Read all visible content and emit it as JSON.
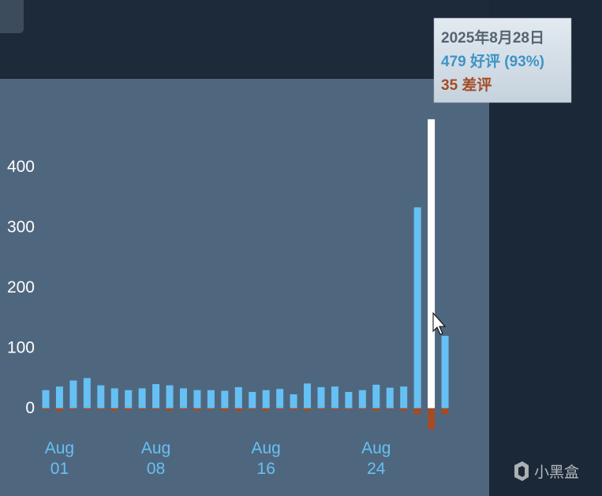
{
  "chart_data": {
    "type": "bar",
    "categories": [
      null,
      "Aug 01",
      null,
      null,
      null,
      null,
      null,
      null,
      "Aug 08",
      null,
      null,
      null,
      null,
      null,
      null,
      null,
      "Aug 16",
      null,
      null,
      null,
      null,
      null,
      null,
      null,
      "Aug 24",
      null,
      null,
      null,
      null,
      null
    ],
    "series": [
      {
        "color": "#66c0f4",
        "values": [
          30,
          36,
          46,
          50,
          38,
          33,
          30,
          33,
          40,
          38,
          33,
          30,
          30,
          29,
          35,
          27,
          30,
          32,
          23,
          41,
          35,
          36,
          27,
          30,
          39,
          34,
          36,
          333,
          479,
          120
        ]
      },
      {
        "color": "#a34c25",
        "values": [
          -2,
          -5,
          -2,
          -2,
          -2,
          -4,
          -3,
          -2,
          -2,
          -4,
          -2,
          -4,
          -2,
          -4,
          -5,
          -2,
          -4,
          -2,
          -3,
          -4,
          -2,
          -2,
          -2,
          -2,
          -4,
          -2,
          -4,
          -10,
          -35,
          -10
        ]
      }
    ],
    "highlight": {
      "index": 28,
      "color": "#ffffff"
    },
    "ylim": [
      -40,
      546
    ],
    "yticks": [
      0,
      100,
      200,
      300,
      400
    ],
    "tooltip": {
      "title": "2025年8月28日",
      "positive": "479 好评 (93%)",
      "negative": "35 差评"
    },
    "watermark": "小黑盒"
  }
}
